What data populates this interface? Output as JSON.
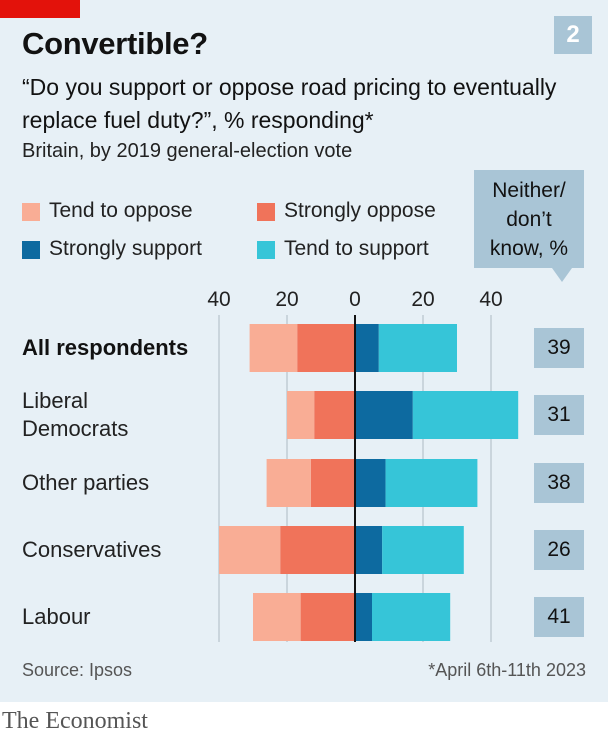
{
  "header": {
    "title": "Convertible?",
    "chart_number": "2",
    "subtitle": "“Do you support or oppose road pricing to eventually replace fuel duty?”, % responding*",
    "subtitle2": "Britain, by 2019 general-election vote"
  },
  "legend": {
    "tend_oppose": "Tend to oppose",
    "strongly_oppose": "Strongly oppose",
    "strongly_support": "Strongly support",
    "tend_support": "Tend to support",
    "neither_line1": "Neither/",
    "neither_line2": "don’t",
    "neither_line3": "know, %"
  },
  "colors": {
    "tend_oppose": "#f9ad95",
    "strongly_oppose": "#f0735a",
    "strongly_support": "#0d6aa0",
    "tend_support": "#36c5d8",
    "panel": "#e7f0f6",
    "badge": "#a9c5d6"
  },
  "chart_data": {
    "type": "bar",
    "orientation": "horizontal-diverging-stacked",
    "categories": [
      "All respondents",
      "Liberal Democrats",
      "Other parties",
      "Conservatives",
      "Labour"
    ],
    "category_lines": [
      [
        "All respondents"
      ],
      [
        "Liberal",
        "Democrats"
      ],
      [
        "Other parties"
      ],
      [
        "Conservatives"
      ],
      [
        "Labour"
      ]
    ],
    "series": [
      {
        "name": "Strongly oppose",
        "values": [
          17,
          12,
          13,
          22,
          16
        ]
      },
      {
        "name": "Tend to oppose",
        "values": [
          14,
          8,
          13,
          18,
          14
        ]
      },
      {
        "name": "Strongly support",
        "values": [
          7,
          17,
          9,
          8,
          5
        ]
      },
      {
        "name": "Tend to support",
        "values": [
          23,
          31,
          27,
          24,
          23
        ]
      }
    ],
    "neither": [
      "39",
      "31",
      "38",
      "26",
      "41"
    ],
    "xlim": [
      -40,
      40
    ],
    "xticks": [
      -40,
      -20,
      0,
      20,
      40
    ],
    "xtick_labels": [
      "40",
      "20",
      "0",
      "20",
      "40"
    ]
  },
  "footer": {
    "source": "Source: Ipsos",
    "note": "*April 6th-11th 2023",
    "brand": "The Economist"
  }
}
